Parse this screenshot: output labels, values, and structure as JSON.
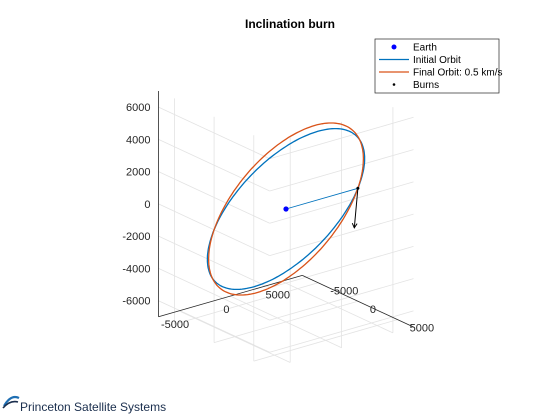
{
  "footer": {
    "company": "Princeton Satellite Systems"
  },
  "chart_data": {
    "type": "line",
    "projection": "3d",
    "title": "Inclination burn",
    "xlabel": "",
    "ylabel": "",
    "zlabel": "",
    "xlim": [
      -7000,
      7000
    ],
    "ylim": [
      -7000,
      7000
    ],
    "zlim": [
      -7000,
      7000
    ],
    "x_ticks": [
      -5000,
      0,
      5000
    ],
    "y_ticks": [
      -5000,
      0,
      5000
    ],
    "z_ticks": [
      -6000,
      -4000,
      -2000,
      0,
      2000,
      4000,
      6000
    ],
    "x_tick_labels": [
      "-5000",
      "0",
      "5000"
    ],
    "y_tick_labels": [
      "-5000",
      "0",
      "5000"
    ],
    "z_tick_labels": [
      "-6000",
      "-4000",
      "-2000",
      "0",
      "2000",
      "4000",
      "6000"
    ],
    "grid": true,
    "legend_position": "top-right",
    "legend": [
      {
        "label": "Earth",
        "marker": "dot",
        "color": "#0000ff"
      },
      {
        "label": "Initial Orbit",
        "marker": "line",
        "color": "#0072bd"
      },
      {
        "label": "Final Orbit: 0.5 km/s",
        "marker": "line",
        "color": "#d95319"
      },
      {
        "label": "Burns",
        "marker": "small-dot",
        "color": "#000000"
      }
    ],
    "series": [
      {
        "name": "Earth",
        "points": [
          [
            0,
            0,
            0
          ]
        ],
        "color": "#0000ff"
      },
      {
        "name": "Initial Orbit",
        "kind": "circular-orbit",
        "radius": 7000,
        "inclination_deg": 55,
        "raan_deg": 0,
        "color": "#0072bd"
      },
      {
        "name": "Final Orbit: 0.5 km/s",
        "kind": "circular-orbit",
        "radius": 7000,
        "inclination_deg": 59,
        "raan_deg": 0,
        "color": "#d95319"
      },
      {
        "name": "Burns",
        "points": [
          [
            7000,
            0,
            0
          ]
        ],
        "color": "#000000"
      }
    ],
    "radius_vector": {
      "from": [
        0,
        0,
        0
      ],
      "to": [
        7000,
        0,
        0
      ],
      "color": "#0072bd"
    },
    "velocity_arrow": {
      "origin": [
        7000,
        0,
        0
      ],
      "direction": [
        0,
        -0.15,
        -0.85
      ],
      "color": "#000000"
    }
  }
}
